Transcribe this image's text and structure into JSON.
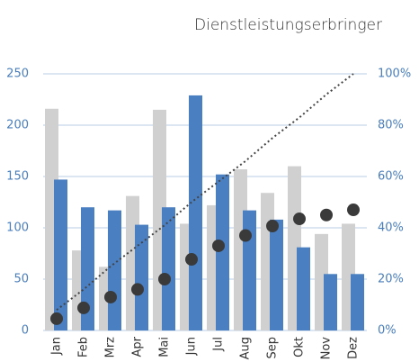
{
  "chart_data": {
    "type": "bar",
    "title": "Dienstleistungserbringer",
    "categories": [
      "Jan",
      "Feb",
      "Mrz",
      "Apr",
      "Mai",
      "Jun",
      "Jul",
      "Aug",
      "Sep",
      "Okt",
      "Nov",
      "Dez"
    ],
    "series": [
      {
        "type": "bar",
        "color": "#d0d0d0",
        "values": [
          216,
          78,
          62,
          131,
          215,
          104,
          122,
          157,
          134,
          160,
          94,
          104
        ]
      },
      {
        "type": "bar",
        "color": "#4a7fc1",
        "values": [
          147,
          120,
          117,
          103,
          120,
          229,
          152,
          117,
          108,
          81,
          55,
          55
        ]
      },
      {
        "type": "scatter",
        "axis": "y2",
        "color": "#3a3a3a",
        "values": [
          4.6,
          8.8,
          13,
          16,
          20,
          27.7,
          33,
          37,
          40.7,
          43.5,
          45,
          47
        ]
      },
      {
        "type": "line",
        "axis": "y2",
        "color": "#444444",
        "values": [
          8,
          16,
          25,
          33,
          41,
          50,
          58,
          66,
          75,
          83,
          92,
          100
        ]
      }
    ],
    "ylim": [
      0,
      250
    ],
    "yticks": [
      0,
      50,
      100,
      150,
      200,
      250
    ],
    "y2lim": [
      0,
      100
    ],
    "y2ticks": [
      {
        "value": 0,
        "label": "0%"
      },
      {
        "value": 20,
        "label": "20%"
      },
      {
        "value": 40,
        "label": "40%"
      },
      {
        "value": 60,
        "label": "60%"
      },
      {
        "value": 80,
        "label": "80%"
      },
      {
        "value": 100,
        "label": "100%"
      }
    ],
    "grid": true
  }
}
